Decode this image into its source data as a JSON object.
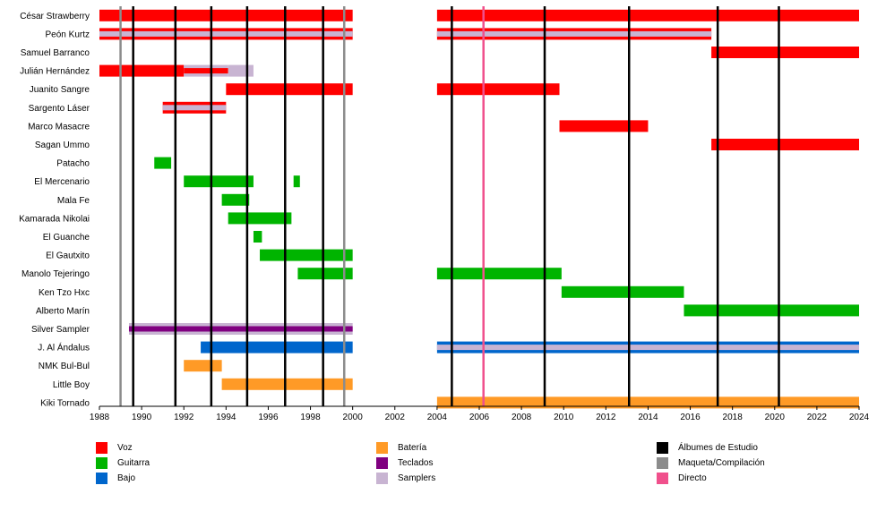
{
  "chart_data": {
    "type": "timeline",
    "x_range": [
      1988,
      2024
    ],
    "x_ticks": [
      "1988",
      "1990",
      "1992",
      "1994",
      "1996",
      "1998",
      "2000",
      "2002",
      "2004",
      "2006",
      "2008",
      "2010",
      "2012",
      "2014",
      "2016",
      "2018",
      "2020",
      "2022",
      "2024"
    ],
    "colors": {
      "vocals": "#ff0000",
      "guitar": "#00b400",
      "bass": "#0066cc",
      "drums": "#ff9a26",
      "keyboards": "#800080",
      "samplers": "#c8b4d2",
      "studio": "#000000",
      "demo": "#8c8c8c",
      "live": "#f0508c"
    },
    "members": [
      {
        "name": "César Strawberry",
        "spans": [
          {
            "start": 1988,
            "end": 2000,
            "role": "vocals"
          },
          {
            "start": 2004,
            "end": 2024,
            "role": "vocals"
          }
        ]
      },
      {
        "name": "Peón Kurtz",
        "spans": [
          {
            "start": 1988,
            "end": 2000,
            "role": "vocals",
            "inner": "samplers"
          },
          {
            "start": 2004,
            "end": 2017,
            "role": "vocals",
            "inner": "samplers"
          }
        ]
      },
      {
        "name": "Samuel Barranco",
        "spans": [
          {
            "start": 2017,
            "end": 2024,
            "role": "vocals"
          }
        ]
      },
      {
        "name": "Julián Hernández",
        "spans": [
          {
            "start": 1988,
            "end": 1992,
            "role": "vocals"
          },
          {
            "start": 1992,
            "end": 1994.1,
            "role": "samplers",
            "inner": "vocals"
          },
          {
            "start": 1994.1,
            "end": 1995.3,
            "role": "samplers"
          }
        ]
      },
      {
        "name": "Juanito Sangre",
        "spans": [
          {
            "start": 1994,
            "end": 2000,
            "role": "vocals"
          },
          {
            "start": 2004,
            "end": 2009.8,
            "role": "vocals"
          }
        ]
      },
      {
        "name": "Sargento Láser",
        "spans": [
          {
            "start": 1991,
            "end": 1994,
            "role": "vocals",
            "inner": "samplers"
          }
        ]
      },
      {
        "name": "Marco Masacre",
        "spans": [
          {
            "start": 2009.8,
            "end": 2014,
            "role": "vocals"
          }
        ]
      },
      {
        "name": "Sagan Ummo",
        "spans": [
          {
            "start": 2017,
            "end": 2024,
            "role": "vocals"
          }
        ]
      },
      {
        "name": "Patacho",
        "spans": [
          {
            "start": 1990.6,
            "end": 1991.4,
            "role": "guitar"
          }
        ]
      },
      {
        "name": "El Mercenario",
        "spans": [
          {
            "start": 1992,
            "end": 1995.3,
            "role": "guitar"
          },
          {
            "start": 1997.2,
            "end": 1997.5,
            "role": "guitar"
          }
        ]
      },
      {
        "name": "Mala Fe",
        "spans": [
          {
            "start": 1993.8,
            "end": 1995.1,
            "role": "guitar"
          }
        ]
      },
      {
        "name": "Kamarada Nikolai",
        "spans": [
          {
            "start": 1994.1,
            "end": 1997.1,
            "role": "guitar"
          }
        ]
      },
      {
        "name": "El Guanche",
        "spans": [
          {
            "start": 1995.3,
            "end": 1995.7,
            "role": "guitar"
          }
        ]
      },
      {
        "name": "El Gautxito",
        "spans": [
          {
            "start": 1995.6,
            "end": 2000,
            "role": "guitar"
          }
        ]
      },
      {
        "name": "Manolo Tejeringo",
        "spans": [
          {
            "start": 1997.4,
            "end": 2000,
            "role": "guitar"
          },
          {
            "start": 2004,
            "end": 2009.9,
            "role": "guitar"
          }
        ]
      },
      {
        "name": "Ken Tzo Hxc",
        "spans": [
          {
            "start": 2009.9,
            "end": 2015.7,
            "role": "guitar"
          }
        ]
      },
      {
        "name": "Alberto Marín",
        "spans": [
          {
            "start": 2015.7,
            "end": 2024,
            "role": "guitar"
          }
        ]
      },
      {
        "name": "Silver Sampler",
        "spans": [
          {
            "start": 1989.4,
            "end": 2000,
            "role": "samplers",
            "inner": "keyboards"
          }
        ]
      },
      {
        "name": "J. Al Ándalus",
        "spans": [
          {
            "start": 1992.8,
            "end": 2000,
            "role": "bass"
          },
          {
            "start": 2004,
            "end": 2024,
            "role": "bass",
            "inner": "samplers"
          }
        ]
      },
      {
        "name": "NMK Bul-Bul",
        "spans": [
          {
            "start": 1992,
            "end": 1993.8,
            "role": "drums"
          }
        ]
      },
      {
        "name": "Little Boy",
        "spans": [
          {
            "start": 1993.8,
            "end": 2000,
            "role": "drums"
          }
        ]
      },
      {
        "name": "Kiki Tornado",
        "spans": [
          {
            "start": 2004,
            "end": 2024,
            "role": "drums"
          }
        ]
      }
    ],
    "events": [
      {
        "year": 1989,
        "type": "demo"
      },
      {
        "year": 1989.6,
        "type": "studio"
      },
      {
        "year": 1991.6,
        "type": "studio"
      },
      {
        "year": 1993.3,
        "type": "studio"
      },
      {
        "year": 1995,
        "type": "studio"
      },
      {
        "year": 1996.8,
        "type": "studio"
      },
      {
        "year": 1998.6,
        "type": "studio"
      },
      {
        "year": 1999.6,
        "type": "demo"
      },
      {
        "year": 2004.7,
        "type": "studio"
      },
      {
        "year": 2006.2,
        "type": "live"
      },
      {
        "year": 2009.1,
        "type": "studio"
      },
      {
        "year": 2013.1,
        "type": "studio"
      },
      {
        "year": 2017.3,
        "type": "studio"
      },
      {
        "year": 2020.2,
        "type": "studio"
      }
    ],
    "legend": [
      {
        "label": "Voz",
        "key": "vocals"
      },
      {
        "label": "Guitarra",
        "key": "guitar"
      },
      {
        "label": "Bajo",
        "key": "bass"
      },
      {
        "label": "Batería",
        "key": "drums"
      },
      {
        "label": "Teclados",
        "key": "keyboards"
      },
      {
        "label": "Samplers",
        "key": "samplers"
      },
      {
        "label": "Álbumes de Estudio",
        "key": "studio"
      },
      {
        "label": "Maqueta/Compilación",
        "key": "demo"
      },
      {
        "label": "Directo",
        "key": "live"
      }
    ]
  }
}
